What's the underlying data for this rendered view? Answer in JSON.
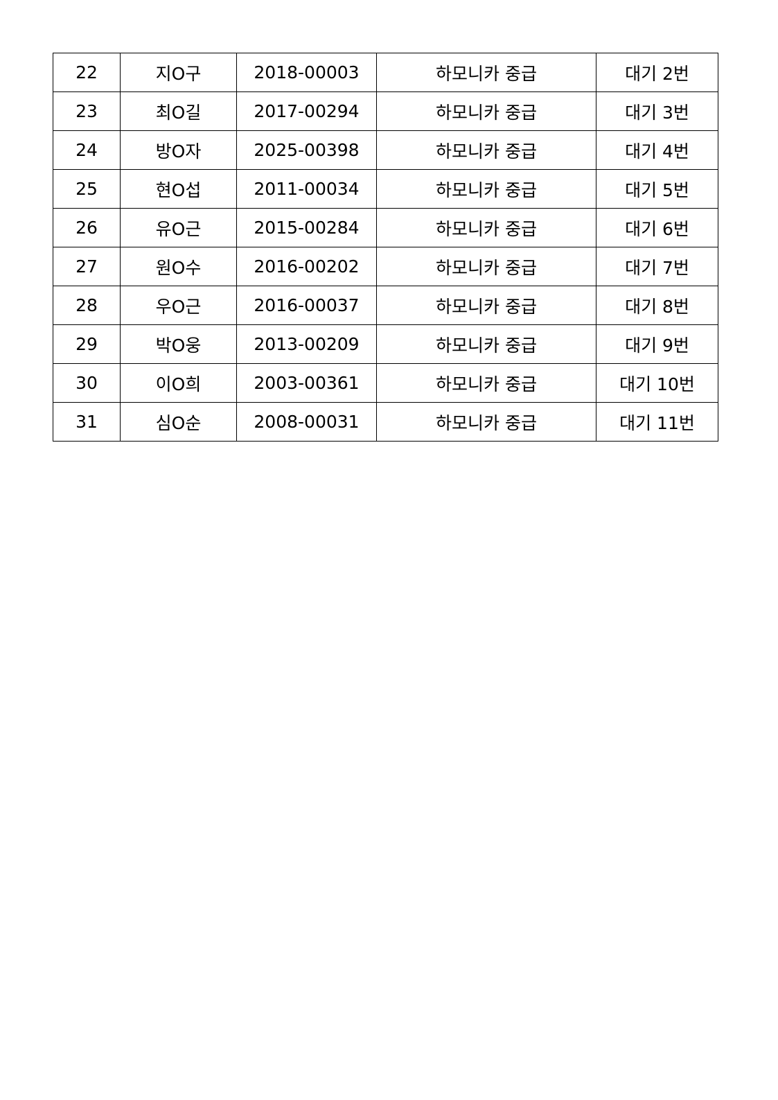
{
  "table": {
    "rows": [
      {
        "no": "22",
        "name": "지O구",
        "id": "2018-00003",
        "course": "하모니카 중급",
        "status": "대기 2번"
      },
      {
        "no": "23",
        "name": "최O길",
        "id": "2017-00294",
        "course": "하모니카 중급",
        "status": "대기 3번"
      },
      {
        "no": "24",
        "name": "방O자",
        "id": "2025-00398",
        "course": "하모니카 중급",
        "status": "대기 4번"
      },
      {
        "no": "25",
        "name": "현O섭",
        "id": "2011-00034",
        "course": "하모니카 중급",
        "status": "대기 5번"
      },
      {
        "no": "26",
        "name": "유O근",
        "id": "2015-00284",
        "course": "하모니카 중급",
        "status": "대기 6번"
      },
      {
        "no": "27",
        "name": "원O수",
        "id": "2016-00202",
        "course": "하모니카 중급",
        "status": "대기 7번"
      },
      {
        "no": "28",
        "name": "우O근",
        "id": "2016-00037",
        "course": "하모니카 중급",
        "status": "대기 8번"
      },
      {
        "no": "29",
        "name": "박O웅",
        "id": "2013-00209",
        "course": "하모니카 중급",
        "status": "대기 9번"
      },
      {
        "no": "30",
        "name": "이O희",
        "id": "2003-00361",
        "course": "하모니카 중급",
        "status": "대기 10번"
      },
      {
        "no": "31",
        "name": "심O순",
        "id": "2008-00031",
        "course": "하모니카 중급",
        "status": "대기 11번"
      }
    ]
  }
}
